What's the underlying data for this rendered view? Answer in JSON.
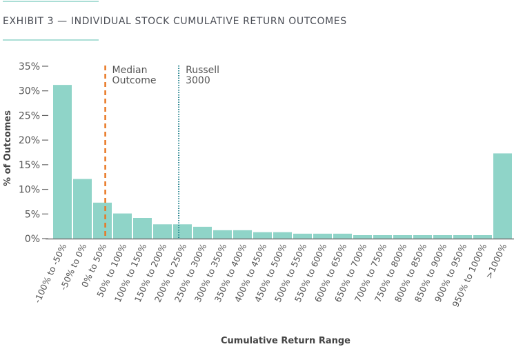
{
  "chart_data": {
    "type": "bar",
    "title": "EXHIBIT 3 — INDIVIDUAL STOCK CUMULATIVE RETURN OUTCOMES",
    "xlabel": "Cumulative Return Range",
    "ylabel": "% of Outcomes",
    "ylim": [
      0,
      35
    ],
    "yticks": [
      0,
      5,
      10,
      15,
      20,
      25,
      30,
      35
    ],
    "ytick_labels": [
      "0%",
      "5%",
      "10%",
      "15%",
      "20%",
      "25%",
      "30%",
      "35%"
    ],
    "grid": false,
    "categories": [
      "-100% to -50%",
      "-50% to 0%",
      "0% to 50%",
      "50% to 100%",
      "100% to 150%",
      "150% to 200%",
      "200% to 250%",
      "250% to 300%",
      "300% to 350%",
      "350% to 400%",
      "400% to 450%",
      "450% to 500%",
      "500% to 550%",
      "550% to 600%",
      "600% to 650%",
      "650% to 700%",
      "700% to 750%",
      "750% to 800%",
      "800% to 850%",
      "850% to 900%",
      "900% to 950%",
      "950% to 1000%",
      ">1000%"
    ],
    "values": [
      31.2,
      12.1,
      7.3,
      5.1,
      4.2,
      2.9,
      2.9,
      2.4,
      1.7,
      1.7,
      1.3,
      1.3,
      1.0,
      1.0,
      1.0,
      0.7,
      0.7,
      0.7,
      0.7,
      0.7,
      0.7,
      0.7,
      17.3
    ],
    "annotations": [
      {
        "label": [
          "Median",
          "Outcome"
        ],
        "category": "0% to 50%",
        "style": "dashed",
        "color": "#e87722"
      },
      {
        "label": [
          "Russell",
          "3000"
        ],
        "category": "200% to 250%",
        "style": "dotted",
        "color": "#1d7f8a"
      }
    ],
    "colors": {
      "bar": "#8fd4c8",
      "axis": "#777777",
      "rule": "#8fd4c8",
      "title": "#4a4d55"
    }
  }
}
